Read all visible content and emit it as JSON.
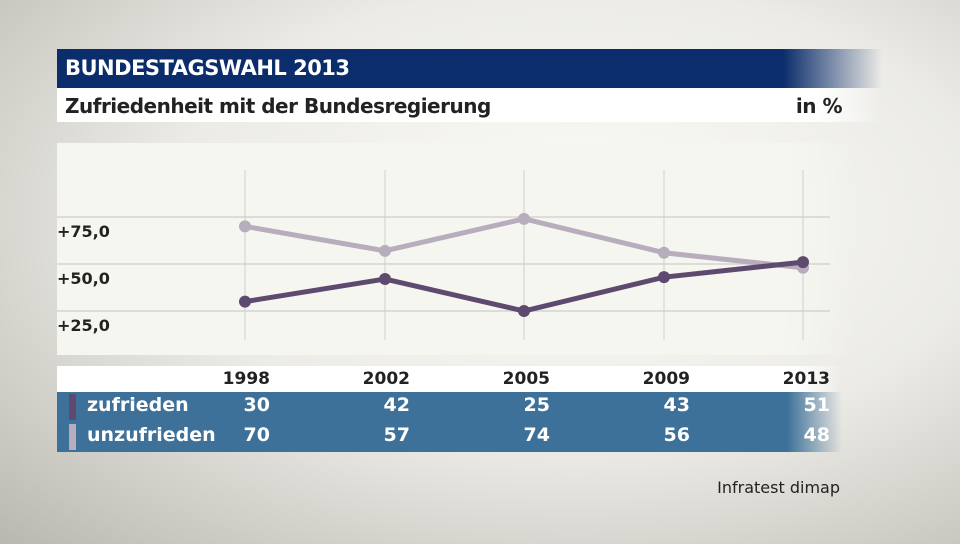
{
  "header": {
    "title": "BUNDESTAGSWAHL 2013",
    "subtitle": "Zufriedenheit mit der Bundesregierung",
    "unit": "in %"
  },
  "source": "Infratest dimap",
  "chart_data": {
    "type": "line",
    "categories": [
      "1998",
      "2002",
      "2005",
      "2009",
      "2013"
    ],
    "yticks": [
      "+25,0",
      "+50,0",
      "+75,0"
    ],
    "ytick_values": [
      25,
      50,
      75
    ],
    "grid": true,
    "series": [
      {
        "name": "zufrieden",
        "values": [
          30,
          42,
          25,
          43,
          51
        ],
        "color": "#5e4a6e"
      },
      {
        "name": "unzufrieden",
        "values": [
          70,
          57,
          74,
          56,
          48
        ],
        "color": "#b8adbd"
      }
    ]
  }
}
